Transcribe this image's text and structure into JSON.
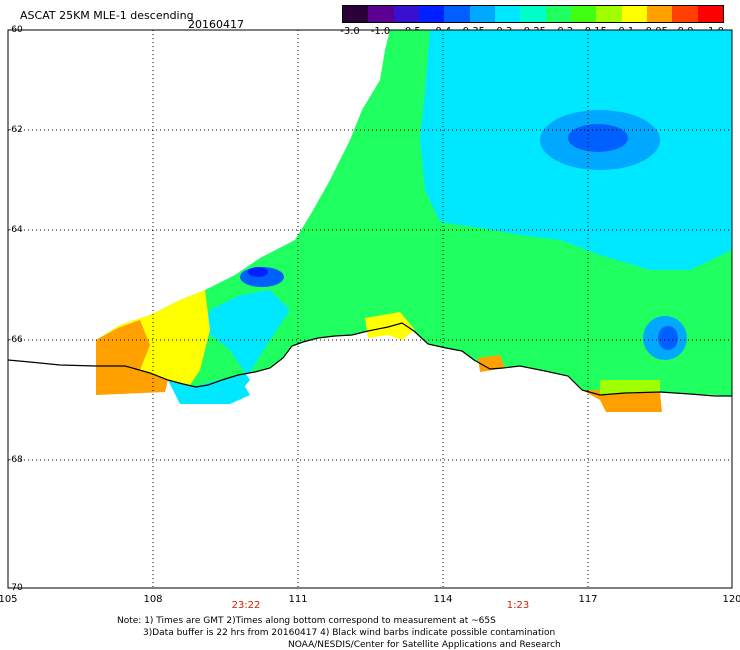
{
  "header": {
    "title": "ASCAT 25KM MLE-1 descending",
    "date": "20160417"
  },
  "colorbar": {
    "labels": [
      "-3.0",
      "-1.0",
      "-0.5",
      "-0.4",
      "-0.35",
      "-0.3",
      "-0.25",
      "-0.2",
      "-0.15",
      "-0.1",
      "-0.05",
      "0.0",
      "1.0"
    ],
    "colors": [
      "#2a0038",
      "#5a0090",
      "#3a10d0",
      "#0020ff",
      "#0060ff",
      "#00a8ff",
      "#00e8ff",
      "#00ffc8",
      "#20ff60",
      "#40ff10",
      "#a0ff00",
      "#ffff00",
      "#ffa000",
      "#ff4000",
      "#ff0000"
    ]
  },
  "axes": {
    "lat_labels": [
      "-60",
      "-62",
      "-64",
      "-66",
      "-68",
      "-70"
    ],
    "lon_labels": [
      "105",
      "108",
      "111",
      "114",
      "117",
      "120"
    ]
  },
  "times": [
    "23:22",
    "1:23"
  ],
  "footer": {
    "line1": "Note: 1) Times are GMT 2)Times along bottom correspond to measurement at ~65S",
    "line2": "3)Data buffer is 22 hrs from 20160417 4) Black wind barbs indicate possible contamination",
    "line3": "NOAA/NESDIS/Center for Satellite Applications and Research"
  }
}
